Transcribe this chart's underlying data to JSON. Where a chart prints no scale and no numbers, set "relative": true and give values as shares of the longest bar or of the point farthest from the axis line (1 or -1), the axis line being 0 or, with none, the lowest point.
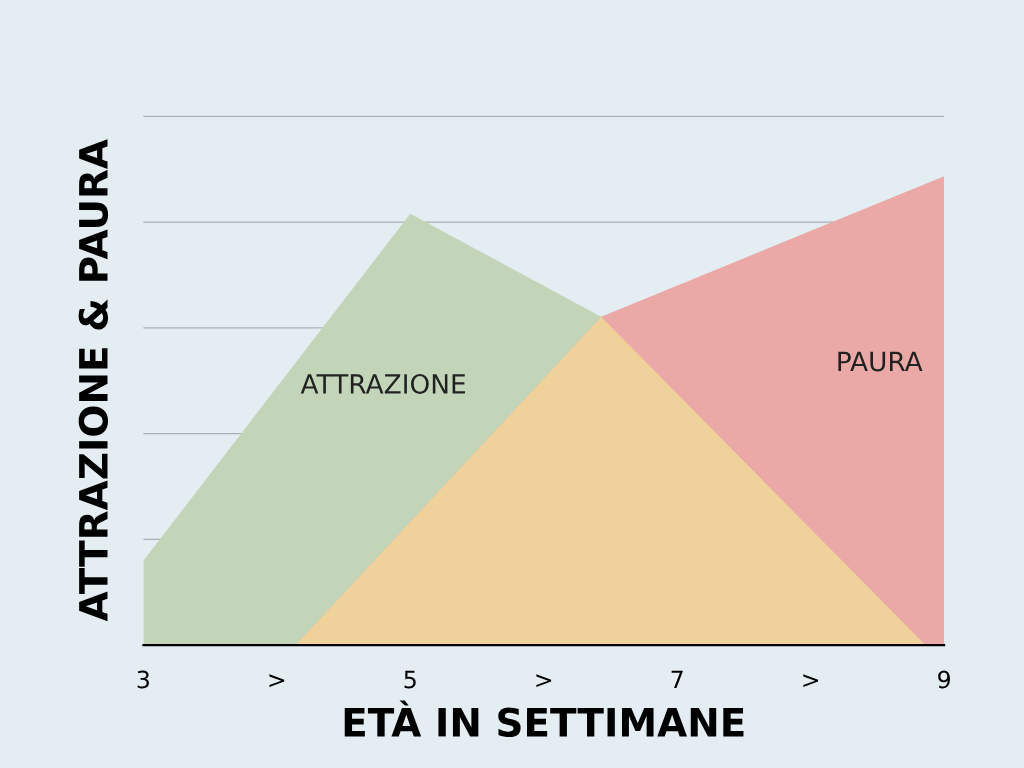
{
  "chart_data": {
    "type": "area",
    "relative": true,
    "xlabel": "ETÀ IN SETTIMANE",
    "ylabel": "ATTRAZIONE & PAURA",
    "xlim": [
      3,
      9
    ],
    "xticks": [
      3,
      {
        "value": 4,
        "label": ">"
      },
      5,
      {
        "value": 6,
        "label": ">"
      },
      7,
      {
        "value": 8,
        "label": ">"
      },
      9
    ],
    "grid": "y",
    "legend": false,
    "series": [
      {
        "name": "ATTRAZIONE",
        "color": "#c2d5b8",
        "x": [
          3,
          5,
          6.43,
          8.86
        ],
        "values": [
          0.18,
          0.92,
          0.7,
          0
        ]
      },
      {
        "name": "PAURA",
        "color": "#eaa9a7",
        "x": [
          4.14,
          6.43,
          9,
          9
        ],
        "values": [
          0,
          0.7,
          1.0,
          0
        ]
      },
      {
        "color": "#efd19b",
        "x": [
          4.14,
          6.43,
          8.86
        ],
        "values": [
          0,
          0.7,
          0
        ]
      }
    ]
  }
}
